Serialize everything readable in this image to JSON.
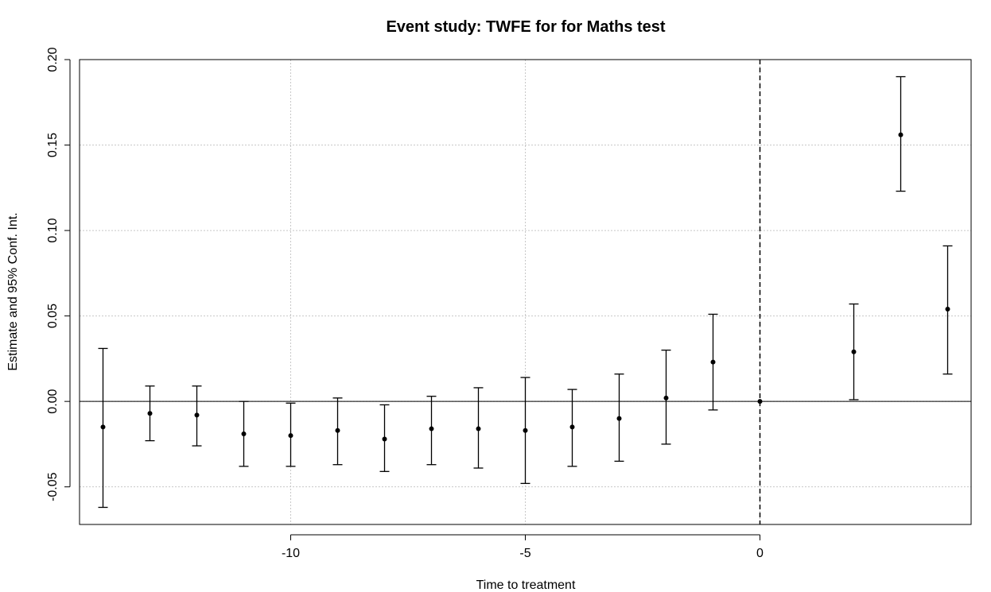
{
  "chart_data": {
    "type": "scatter",
    "title": "Event study: TWFE for for Maths test",
    "xlabel": "Time to treatment",
    "ylabel": "Estimate and 95% Conf. Int.",
    "xlim": [
      -14.5,
      4.5
    ],
    "ylim": [
      -0.072,
      0.2
    ],
    "xticks": [
      -10,
      -5,
      0
    ],
    "xtick_labels": [
      "-10",
      "-5",
      "0"
    ],
    "yticks": [
      -0.05,
      0.0,
      0.05,
      0.1,
      0.15,
      0.2
    ],
    "ytick_labels": [
      "-0.05",
      "0.00",
      "0.05",
      "0.10",
      "0.15",
      "0.20"
    ],
    "grid": true,
    "reference_line_y": 0,
    "reference_line_x": 0,
    "points": [
      {
        "x": -14,
        "est": -0.015,
        "lo": -0.062,
        "hi": 0.031
      },
      {
        "x": -13,
        "est": -0.007,
        "lo": -0.023,
        "hi": 0.009
      },
      {
        "x": -12,
        "est": -0.008,
        "lo": -0.026,
        "hi": 0.009
      },
      {
        "x": -11,
        "est": -0.019,
        "lo": -0.038,
        "hi": 0.0
      },
      {
        "x": -10,
        "est": -0.02,
        "lo": -0.038,
        "hi": -0.001
      },
      {
        "x": -9,
        "est": -0.017,
        "lo": -0.037,
        "hi": 0.002
      },
      {
        "x": -8,
        "est": -0.022,
        "lo": -0.041,
        "hi": -0.002
      },
      {
        "x": -7,
        "est": -0.016,
        "lo": -0.037,
        "hi": 0.003
      },
      {
        "x": -6,
        "est": -0.016,
        "lo": -0.039,
        "hi": 0.008
      },
      {
        "x": -5,
        "est": -0.017,
        "lo": -0.048,
        "hi": 0.014
      },
      {
        "x": -4,
        "est": -0.015,
        "lo": -0.038,
        "hi": 0.007
      },
      {
        "x": -3,
        "est": -0.01,
        "lo": -0.035,
        "hi": 0.016
      },
      {
        "x": -2,
        "est": 0.002,
        "lo": -0.025,
        "hi": 0.03
      },
      {
        "x": -1,
        "est": 0.023,
        "lo": -0.005,
        "hi": 0.051
      },
      {
        "x": 0,
        "est": 0.0,
        "lo": 0.0,
        "hi": 0.0
      },
      {
        "x": 2,
        "est": 0.029,
        "lo": 0.001,
        "hi": 0.057
      },
      {
        "x": 3,
        "est": 0.156,
        "lo": 0.123,
        "hi": 0.19
      },
      {
        "x": 4,
        "est": 0.054,
        "lo": 0.016,
        "hi": 0.091
      }
    ]
  }
}
